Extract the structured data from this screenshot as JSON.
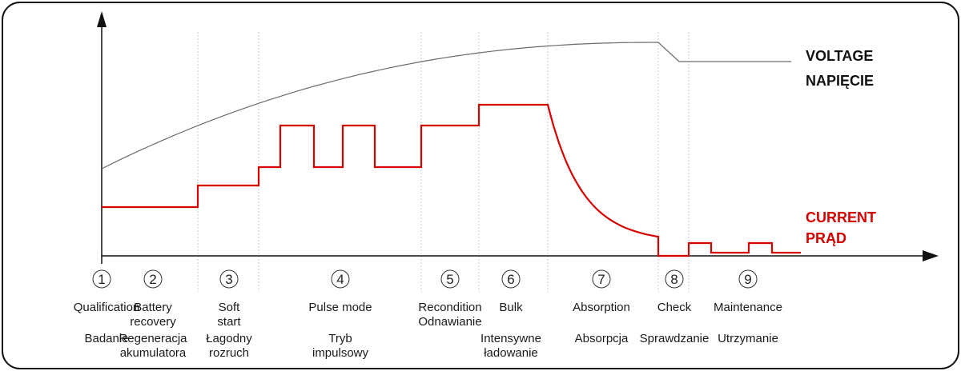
{
  "legend": {
    "voltage": [
      "VOLTAGE",
      "NAPIĘCIE"
    ],
    "current": [
      "CURRENT",
      "PRĄD"
    ]
  },
  "colors": {
    "voltage": "#6b6b6b",
    "current": "#d40000",
    "axis": "#111111",
    "divider": "#c8c8c8",
    "frame": "#111111"
  },
  "stages": [
    {
      "num": "1",
      "en": [
        "Qualification"
      ],
      "pl": [
        "Badanie"
      ]
    },
    {
      "num": "2",
      "en": [
        "Battery",
        "recovery"
      ],
      "pl": [
        "Regeneracja",
        "akumulatora"
      ]
    },
    {
      "num": "3",
      "en": [
        "Soft",
        "start"
      ],
      "pl": [
        "Łagodny",
        "rozruch"
      ]
    },
    {
      "num": "4",
      "en": [
        "Pulse mode"
      ],
      "pl": [
        "Tryb",
        "impulsowy"
      ]
    },
    {
      "num": "5",
      "en": [
        "Recondition",
        "Odnawianie"
      ],
      "pl": []
    },
    {
      "num": "6",
      "en": [
        "Bulk"
      ],
      "pl": [
        "Intensywne",
        "ładowanie"
      ]
    },
    {
      "num": "7",
      "en": [
        "Absorption"
      ],
      "pl": [
        "Absorpcja"
      ]
    },
    {
      "num": "8",
      "en": [
        "Check"
      ],
      "pl": [
        "Sprawdzanie"
      ]
    },
    {
      "num": "9",
      "en": [
        "Maintenance"
      ],
      "pl": [
        "Utrzymanie"
      ]
    }
  ]
}
